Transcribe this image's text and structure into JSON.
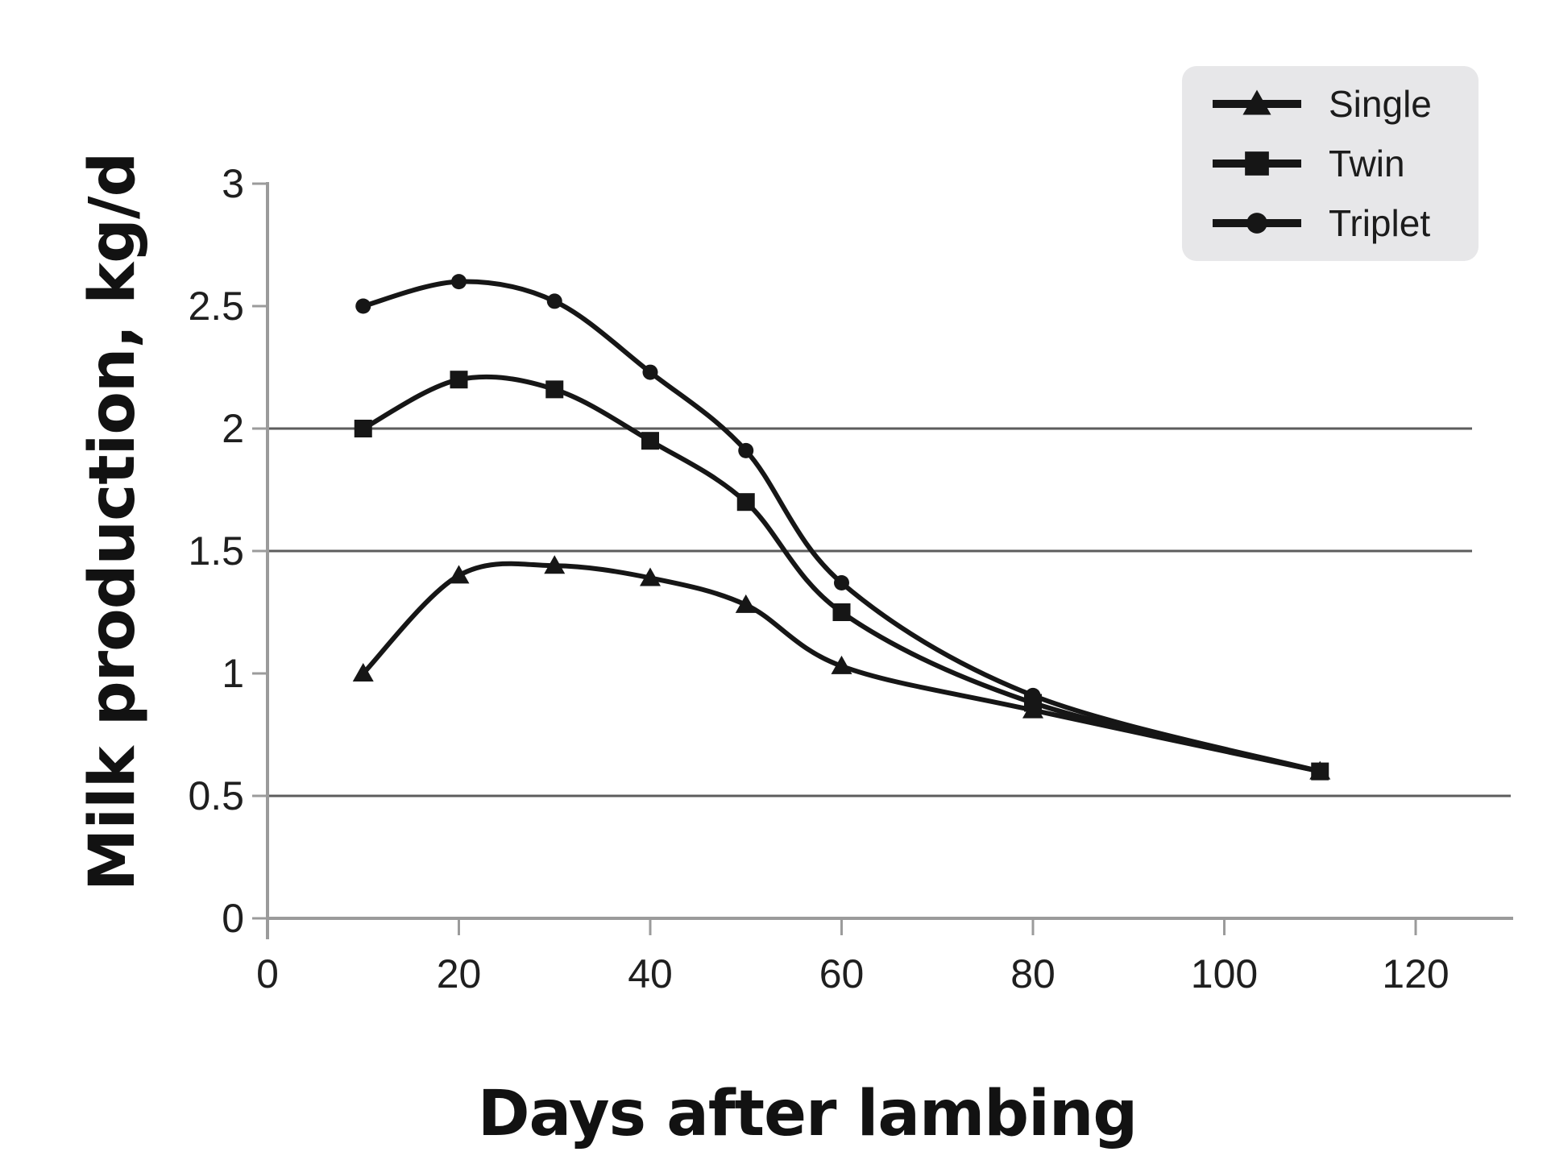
{
  "chart_data": {
    "type": "line",
    "title": "",
    "xlabel": "Days after lambing",
    "ylabel": "Milk production, kg/d",
    "x": [
      10,
      20,
      30,
      40,
      50,
      60,
      80,
      110
    ],
    "series": [
      {
        "name": "Single",
        "marker": "triangle",
        "values": [
          1.0,
          1.4,
          1.44,
          1.39,
          1.28,
          1.03,
          0.85,
          0.6
        ]
      },
      {
        "name": "Twin",
        "marker": "square",
        "values": [
          2.0,
          2.2,
          2.16,
          1.95,
          1.7,
          1.25,
          0.88,
          0.6
        ]
      },
      {
        "name": "Triplet",
        "marker": "circle",
        "values": [
          2.5,
          2.6,
          2.52,
          2.23,
          1.91,
          1.37,
          0.91,
          0.6
        ]
      }
    ],
    "x_ticks": [
      0,
      20,
      40,
      60,
      80,
      100,
      120
    ],
    "y_ticks": [
      0,
      0.5,
      1,
      1.5,
      2,
      2.5,
      3
    ],
    "gridlines_y": [
      2,
      1.5,
      0.5
    ],
    "xlim": [
      0,
      130
    ],
    "ylim": [
      0,
      3
    ],
    "legend_position": "top-right",
    "line_style": "smooth",
    "colors": {
      "line": "#161616",
      "marker": "#161616",
      "axis": "#9b9b9b",
      "grid": "#5c5c5c",
      "tick_text": "#1f1f1f",
      "title_text": "#121212",
      "legend_bg": "#e7e7e9"
    }
  }
}
